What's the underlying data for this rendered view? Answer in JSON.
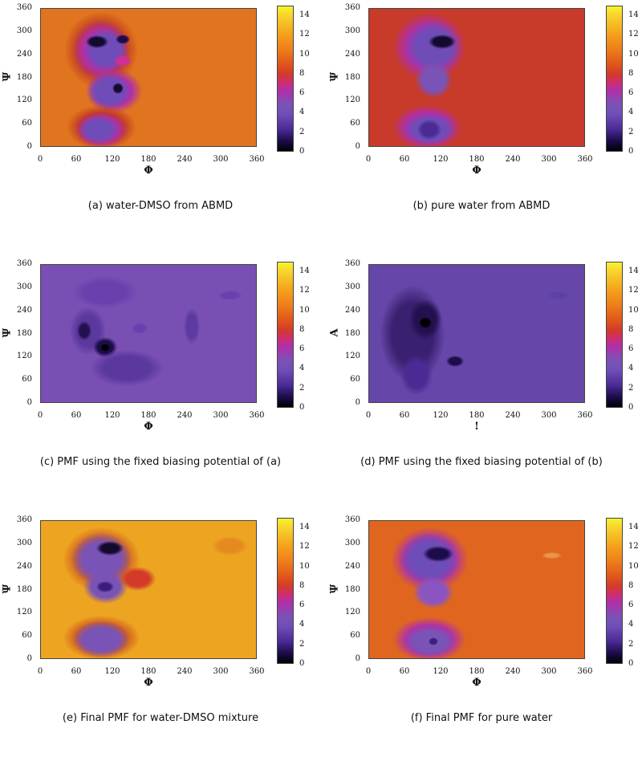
{
  "figure": {
    "panels": [
      {
        "id": "a",
        "caption": "(a)  water-DMSO from ABMD",
        "xlabel": "Φ",
        "ylabel": "Ψ",
        "bg": "#e0741f"
      },
      {
        "id": "b",
        "caption": "(b)  pure water from ABMD",
        "xlabel": "Φ",
        "ylabel": "Ψ",
        "bg": "#c83a2a"
      },
      {
        "id": "c",
        "caption": "(c)  PMF using the fixed biasing potential of (a)",
        "xlabel": "Φ",
        "ylabel": "Ψ",
        "bg": "#7a4fb4"
      },
      {
        "id": "d",
        "caption": "(d)  PMF using the fixed biasing potential of (b)",
        "xlabel": "!",
        "ylabel": "A",
        "bg": "#6646a8"
      },
      {
        "id": "e",
        "caption": "(e)  Final PMF for water-DMSO mixture",
        "xlabel": "Φ",
        "ylabel": "Ψ",
        "bg": "#eda521"
      },
      {
        "id": "f",
        "caption": "(f)  Final PMF for pure water",
        "xlabel": "Φ",
        "ylabel": "Ψ",
        "bg": "#e0661f"
      }
    ],
    "x_ticks": [
      "0",
      "60",
      "120",
      "180",
      "240",
      "300",
      "360"
    ],
    "y_ticks": [
      "360",
      "300",
      "240",
      "180",
      "120",
      "60",
      "0"
    ],
    "colorbar_ticks": [
      "14",
      "12",
      "10",
      "8",
      "6",
      "4",
      "2",
      "0"
    ]
  },
  "chart_data": [
    {
      "type": "heatmap",
      "title": "(a) water-DMSO from ABMD",
      "xlabel": "Φ",
      "ylabel": "Ψ",
      "xlim": [
        0,
        360
      ],
      "ylim": [
        0,
        360
      ],
      "colorbar_range": [
        0,
        15
      ],
      "x_ticks": [
        0,
        60,
        120,
        180,
        240,
        300,
        360
      ],
      "y_ticks": [
        0,
        60,
        120,
        180,
        240,
        300,
        360
      ],
      "colorbar_ticks": [
        0,
        2,
        4,
        6,
        8,
        10,
        12,
        14
      ],
      "background_level": 10.5,
      "minima": [
        {
          "phi": 70,
          "psi": 290,
          "value": 0
        },
        {
          "phi": 110,
          "psi": 300,
          "value": 0.5
        },
        {
          "phi": 95,
          "psi": 185,
          "value": 0
        },
        {
          "phi": 85,
          "psi": 45,
          "value": 3
        },
        {
          "phi": 105,
          "psi": 240,
          "value": 6.5
        }
      ]
    },
    {
      "type": "heatmap",
      "title": "(b) pure water from ABMD",
      "xlabel": "Φ",
      "ylabel": "Ψ",
      "xlim": [
        0,
        360
      ],
      "ylim": [
        0,
        360
      ],
      "colorbar_range": [
        0,
        15
      ],
      "x_ticks": [
        0,
        60,
        120,
        180,
        240,
        300,
        360
      ],
      "y_ticks": [
        0,
        60,
        120,
        180,
        240,
        300,
        360
      ],
      "colorbar_ticks": [
        0,
        2,
        4,
        6,
        8,
        10,
        12,
        14
      ],
      "background_level": 8,
      "minima": [
        {
          "phi": 100,
          "psi": 300,
          "value": 0
        },
        {
          "phi": 90,
          "psi": 200,
          "value": 4
        },
        {
          "phi": 85,
          "psi": 45,
          "value": 2
        }
      ]
    },
    {
      "type": "heatmap",
      "title": "(c) PMF using the fixed biasing potential of (a)",
      "xlabel": "Φ",
      "ylabel": "Ψ",
      "xlim": [
        0,
        360
      ],
      "ylim": [
        0,
        360
      ],
      "colorbar_range": [
        0,
        15
      ],
      "x_ticks": [
        0,
        60,
        120,
        180,
        240,
        300,
        360
      ],
      "y_ticks": [
        0,
        60,
        120,
        180,
        240,
        300,
        360
      ],
      "colorbar_ticks": [
        0,
        2,
        4,
        6,
        8,
        10,
        12,
        14
      ],
      "background_level": 4.5,
      "minima": [
        {
          "phi": 55,
          "psi": 200,
          "value": 1
        },
        {
          "phi": 80,
          "psi": 130,
          "value": 0
        },
        {
          "phi": 90,
          "psi": 60,
          "value": 2.5
        },
        {
          "phi": 135,
          "psi": 165,
          "value": 4
        },
        {
          "phi": 310,
          "psi": 320,
          "value": 5
        }
      ]
    },
    {
      "type": "heatmap",
      "title": "(d) PMF using the fixed biasing potential of (b)",
      "xlabel": "!",
      "ylabel": "A",
      "xlim": [
        0,
        360
      ],
      "ylim": [
        0,
        360
      ],
      "colorbar_range": [
        0,
        15
      ],
      "x_ticks": [
        0,
        60,
        120,
        180,
        240,
        300,
        360
      ],
      "y_ticks": [
        0,
        60,
        120,
        180,
        240,
        300,
        360
      ],
      "colorbar_ticks": [
        0,
        2,
        4,
        6,
        8,
        10,
        12,
        14
      ],
      "background_level": 3.5,
      "minima": [
        {
          "phi": 70,
          "psi": 190,
          "value": 0
        },
        {
          "phi": 130,
          "psi": 60,
          "value": 0.5
        },
        {
          "phi": 320,
          "psi": 315,
          "value": 3
        }
      ]
    },
    {
      "type": "heatmap",
      "title": "(e) Final PMF for water-DMSO mixture",
      "xlabel": "Φ",
      "ylabel": "Ψ",
      "xlim": [
        0,
        360
      ],
      "ylim": [
        0,
        360
      ],
      "colorbar_range": [
        0,
        15
      ],
      "x_ticks": [
        0,
        60,
        120,
        180,
        240,
        300,
        360
      ],
      "y_ticks": [
        0,
        60,
        120,
        180,
        240,
        300,
        360
      ],
      "colorbar_ticks": [
        0,
        2,
        4,
        6,
        8,
        10,
        12,
        14
      ],
      "background_level": 12,
      "minima": [
        {
          "phi": 95,
          "psi": 300,
          "value": 0
        },
        {
          "phi": 85,
          "psi": 190,
          "value": 2
        },
        {
          "phi": 85,
          "psi": 55,
          "value": 3
        },
        {
          "phi": 125,
          "psi": 240,
          "value": 9
        },
        {
          "phi": 320,
          "psi": 330,
          "value": 11
        }
      ]
    },
    {
      "type": "heatmap",
      "title": "(f) Final PMF for pure water",
      "xlabel": "Φ",
      "ylabel": "Ψ",
      "xlim": [
        0,
        360
      ],
      "ylim": [
        0,
        360
      ],
      "colorbar_range": [
        0,
        15
      ],
      "x_ticks": [
        0,
        60,
        120,
        180,
        240,
        300,
        360
      ],
      "y_ticks": [
        0,
        60,
        120,
        180,
        240,
        300,
        360
      ],
      "colorbar_ticks": [
        0,
        2,
        4,
        6,
        8,
        10,
        12,
        14
      ],
      "background_level": 10,
      "minima": [
        {
          "phi": 100,
          "psi": 305,
          "value": 0
        },
        {
          "phi": 90,
          "psi": 200,
          "value": 4
        },
        {
          "phi": 90,
          "psi": 55,
          "value": 2
        },
        {
          "phi": 315,
          "psi": 310,
          "value": 9
        }
      ]
    }
  ]
}
